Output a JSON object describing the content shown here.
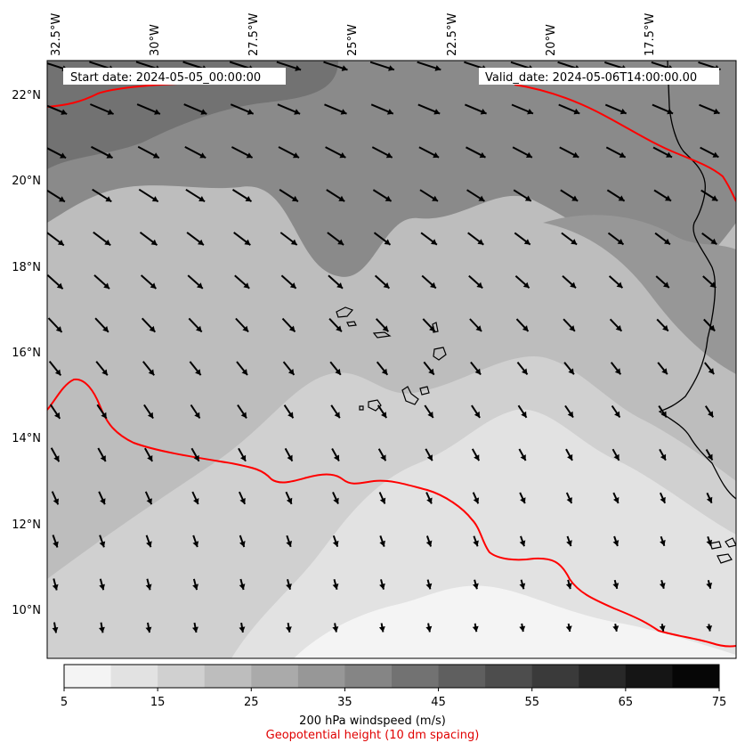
{
  "map": {
    "start_label": "Start date: 2024-05-05_00:00:00",
    "valid_label": "Valid_date: 2024-05-06T14:00:00.00",
    "lon_labels": [
      "32.5°W",
      "30°W",
      "27.5°W",
      "25°W",
      "22.5°W",
      "20°W",
      "17.5°W"
    ],
    "lat_labels": [
      "22°N",
      "20°N",
      "18°N",
      "16°N",
      "14°N",
      "12°N",
      "10°N"
    ],
    "background_fill": "#bdbdbd",
    "contour_color": "#ff0000",
    "coast_color": "#000000",
    "arrow_color": "#000000"
  },
  "colorbar": {
    "ticks": [
      "5",
      "15",
      "25",
      "35",
      "45",
      "55",
      "65",
      "75"
    ],
    "colors": [
      "#f4f4f4",
      "#e2e2e2",
      "#d0d0d0",
      "#bdbdbd",
      "#aaaaaa",
      "#979797",
      "#858585",
      "#727272",
      "#5f5f5f",
      "#4d4d4d",
      "#3a3a3a",
      "#282828",
      "#151515",
      "#060606"
    ],
    "label": "200 hPa windspeed (m/s)",
    "sublabel": "Geopotential height (10 dm spacing)",
    "sublabel_color": "#e00000"
  }
}
